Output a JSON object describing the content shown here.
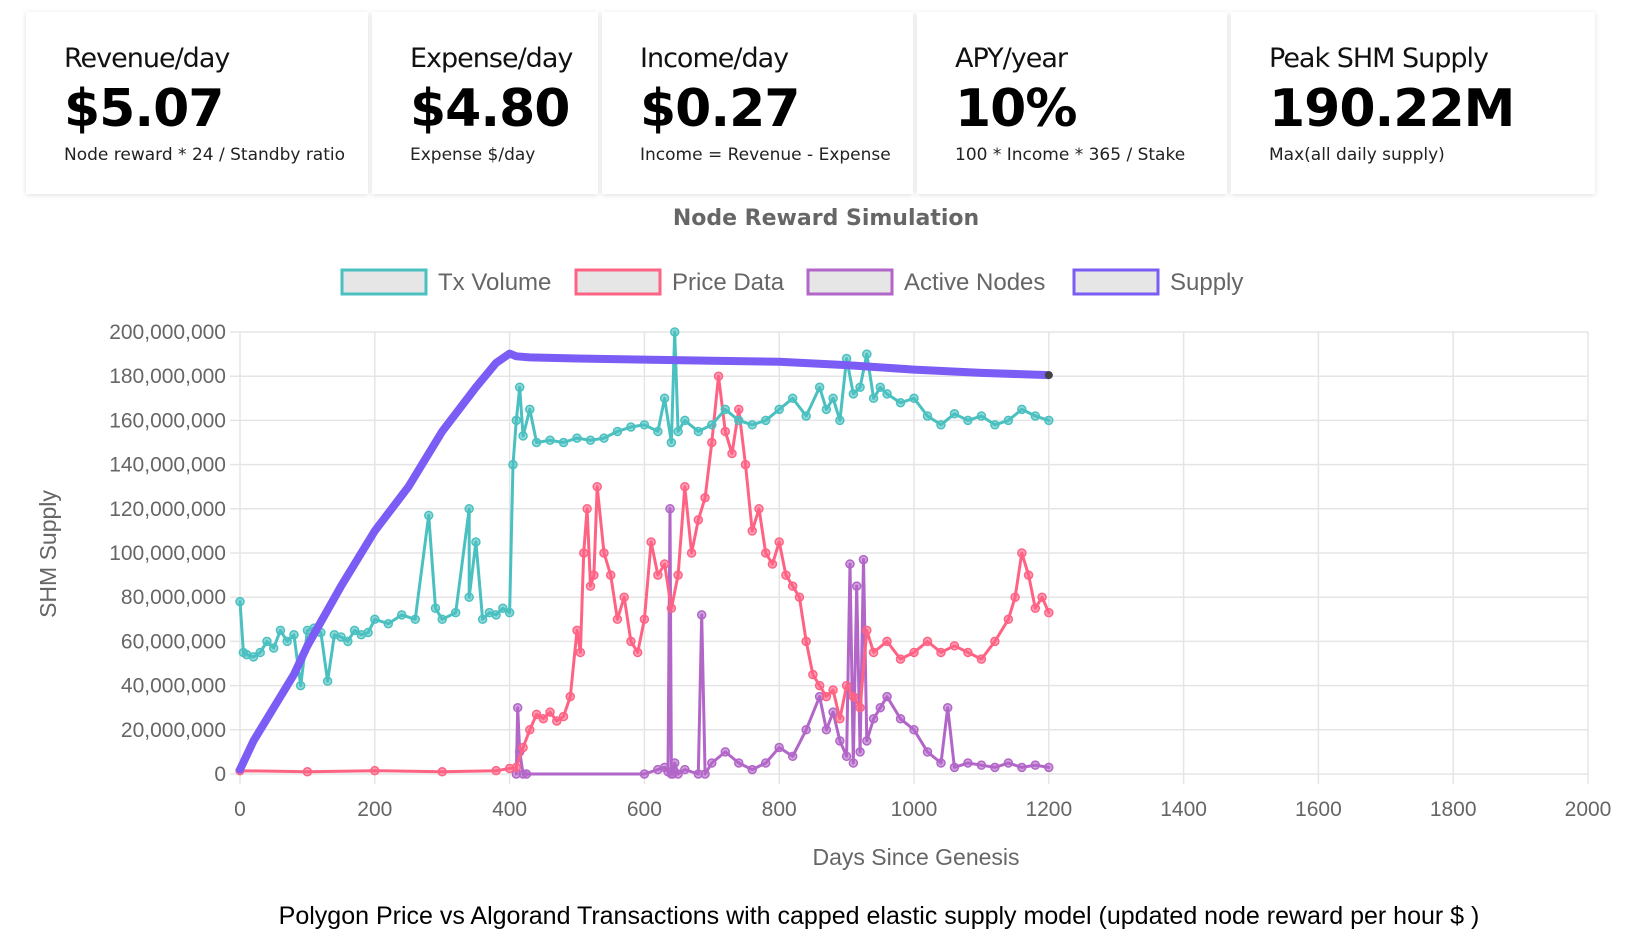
{
  "stats": [
    {
      "label": "Revenue/day",
      "value": "$5.07",
      "desc": "Node reward * 24 / Standby ratio"
    },
    {
      "label": "Expense/day",
      "value": "$4.80",
      "desc": "Expense $/day"
    },
    {
      "label": "Income/day",
      "value": "$0.27",
      "desc": "Income = Revenue - Expense"
    },
    {
      "label": "APY/year",
      "value": "10%",
      "desc": "100 * Income * 365 / Stake"
    },
    {
      "label": "Peak SHM Supply",
      "value": "190.22M",
      "desc": "Max(all daily supply)"
    }
  ],
  "caption": "Polygon Price vs Algorand Transactions with capped elastic supply model (updated node reward per hour $ )",
  "colors": {
    "tx_volume": "#4bc0c0",
    "price_data": "#ff6384",
    "active_nodes": "#b266c8",
    "supply": "#7b5cf5",
    "grid": "#e5e5e5",
    "text": "#666666"
  },
  "chart_data": {
    "type": "line",
    "title": "Node Reward Simulation",
    "xlabel": "Days Since Genesis",
    "ylabel": "SHM Supply",
    "xlim": [
      0,
      2000
    ],
    "ylim": [
      0,
      200000000
    ],
    "x_ticks": [
      0,
      200,
      400,
      600,
      800,
      1000,
      1200,
      1400,
      1600,
      1800,
      2000
    ],
    "x_tick_labels": [
      "0",
      "200",
      "400",
      "600",
      "800",
      "1000",
      "1200",
      "1400",
      "1600",
      "1800",
      "2000"
    ],
    "y_ticks": [
      0,
      20000000,
      40000000,
      60000000,
      80000000,
      100000000,
      120000000,
      140000000,
      160000000,
      180000000,
      200000000
    ],
    "y_tick_labels": [
      "0",
      "20,000,000",
      "40,000,000",
      "60,000,000",
      "80,000,000",
      "100,000,000",
      "120,000,000",
      "140,000,000",
      "160,000,000",
      "180,000,000",
      "200,000,000"
    ],
    "legend_position": "top-center",
    "grid": true,
    "series": [
      {
        "name": "Tx Volume",
        "color": "#4bc0c0",
        "x": [
          0,
          5,
          10,
          20,
          30,
          40,
          50,
          60,
          70,
          80,
          90,
          100,
          110,
          120,
          130,
          140,
          150,
          160,
          170,
          180,
          190,
          200,
          220,
          240,
          260,
          280,
          290,
          300,
          320,
          340,
          340,
          350,
          360,
          370,
          380,
          390,
          400,
          405,
          410,
          415,
          420,
          430,
          440,
          460,
          480,
          500,
          520,
          540,
          560,
          580,
          600,
          620,
          630,
          640,
          645,
          650,
          660,
          680,
          700,
          720,
          740,
          760,
          780,
          800,
          820,
          840,
          860,
          870,
          880,
          890,
          900,
          910,
          920,
          930,
          940,
          950,
          960,
          980,
          1000,
          1020,
          1040,
          1060,
          1080,
          1100,
          1120,
          1140,
          1160,
          1180,
          1200
        ],
        "y": [
          78000000,
          55000000,
          54000000,
          53000000,
          55000000,
          60000000,
          57000000,
          65000000,
          60000000,
          63000000,
          40000000,
          65000000,
          66000000,
          64000000,
          42000000,
          63000000,
          62000000,
          60000000,
          65000000,
          63000000,
          64000000,
          70000000,
          68000000,
          72000000,
          70000000,
          117000000,
          75000000,
          70000000,
          73000000,
          120000000,
          80000000,
          105000000,
          70000000,
          73000000,
          72000000,
          75000000,
          73000000,
          140000000,
          160000000,
          175000000,
          153000000,
          165000000,
          150000000,
          151000000,
          150000000,
          152000000,
          151000000,
          152000000,
          155000000,
          157000000,
          158000000,
          155000000,
          170000000,
          150000000,
          200000000,
          155000000,
          160000000,
          155000000,
          158000000,
          165000000,
          160000000,
          158000000,
          160000000,
          165000000,
          170000000,
          162000000,
          175000000,
          165000000,
          170000000,
          160000000,
          188000000,
          172000000,
          175000000,
          190000000,
          170000000,
          175000000,
          172000000,
          168000000,
          170000000,
          162000000,
          158000000,
          163000000,
          160000000,
          162000000,
          158000000,
          160000000,
          165000000,
          162000000,
          160000000
        ]
      },
      {
        "name": "Price Data",
        "color": "#ff6384",
        "x": [
          0,
          100,
          200,
          300,
          380,
          400,
          410,
          420,
          430,
          440,
          450,
          460,
          470,
          480,
          490,
          500,
          505,
          510,
          515,
          520,
          525,
          530,
          540,
          550,
          560,
          570,
          580,
          590,
          600,
          610,
          620,
          630,
          640,
          650,
          660,
          670,
          680,
          690,
          700,
          710,
          720,
          730,
          740,
          750,
          760,
          770,
          780,
          790,
          800,
          810,
          820,
          830,
          840,
          850,
          860,
          870,
          880,
          890,
          900,
          910,
          920,
          930,
          940,
          960,
          980,
          1000,
          1020,
          1040,
          1060,
          1080,
          1100,
          1120,
          1140,
          1150,
          1160,
          1170,
          1180,
          1190,
          1200
        ],
        "y": [
          1500000,
          1000000,
          1500000,
          1000000,
          1500000,
          2500000,
          3000000,
          12000000,
          20000000,
          27000000,
          25000000,
          28000000,
          24000000,
          26000000,
          35000000,
          65000000,
          55000000,
          100000000,
          120000000,
          85000000,
          90000000,
          130000000,
          100000000,
          90000000,
          70000000,
          80000000,
          60000000,
          55000000,
          70000000,
          105000000,
          90000000,
          95000000,
          75000000,
          90000000,
          130000000,
          100000000,
          115000000,
          125000000,
          150000000,
          180000000,
          155000000,
          145000000,
          165000000,
          140000000,
          110000000,
          120000000,
          100000000,
          95000000,
          105000000,
          90000000,
          85000000,
          80000000,
          60000000,
          45000000,
          40000000,
          35000000,
          38000000,
          25000000,
          40000000,
          35000000,
          30000000,
          65000000,
          55000000,
          60000000,
          52000000,
          55000000,
          60000000,
          55000000,
          58000000,
          55000000,
          52000000,
          60000000,
          70000000,
          80000000,
          100000000,
          90000000,
          75000000,
          80000000,
          73000000
        ]
      },
      {
        "name": "Active Nodes",
        "color": "#b266c8",
        "x": [
          410,
          412,
          415,
          420,
          425,
          600,
          620,
          630,
          635,
          638,
          640,
          642,
          645,
          650,
          660,
          680,
          685,
          690,
          700,
          720,
          740,
          760,
          780,
          800,
          820,
          840,
          860,
          870,
          880,
          890,
          900,
          905,
          910,
          915,
          920,
          925,
          930,
          940,
          950,
          960,
          980,
          1000,
          1020,
          1040,
          1050,
          1060,
          1080,
          1100,
          1120,
          1140,
          1160,
          1180,
          1200
        ],
        "y": [
          0,
          30000000,
          10000000,
          0,
          0,
          0,
          2000000,
          3000000,
          1000000,
          120000000,
          0,
          0,
          5000000,
          0,
          2000000,
          0,
          72000000,
          0,
          5000000,
          10000000,
          5000000,
          2000000,
          5000000,
          12000000,
          8000000,
          20000000,
          35000000,
          20000000,
          28000000,
          15000000,
          8000000,
          95000000,
          5000000,
          85000000,
          10000000,
          97000000,
          15000000,
          25000000,
          30000000,
          35000000,
          25000000,
          20000000,
          10000000,
          5000000,
          30000000,
          3000000,
          5000000,
          4000000,
          3000000,
          5000000,
          3000000,
          4000000,
          3000000
        ]
      },
      {
        "name": "Supply",
        "color": "#7b5cf5",
        "x": [
          0,
          20,
          50,
          80,
          100,
          150,
          200,
          250,
          300,
          350,
          380,
          400,
          410,
          430,
          500,
          600,
          700,
          800,
          900,
          1000,
          1100,
          1200
        ],
        "y": [
          2000000,
          15000000,
          30000000,
          45000000,
          58000000,
          85000000,
          110000000,
          130000000,
          155000000,
          175000000,
          186000000,
          190220000,
          189000000,
          188500000,
          188000000,
          187500000,
          187000000,
          186500000,
          185000000,
          183000000,
          181500000,
          180500000
        ]
      }
    ]
  }
}
